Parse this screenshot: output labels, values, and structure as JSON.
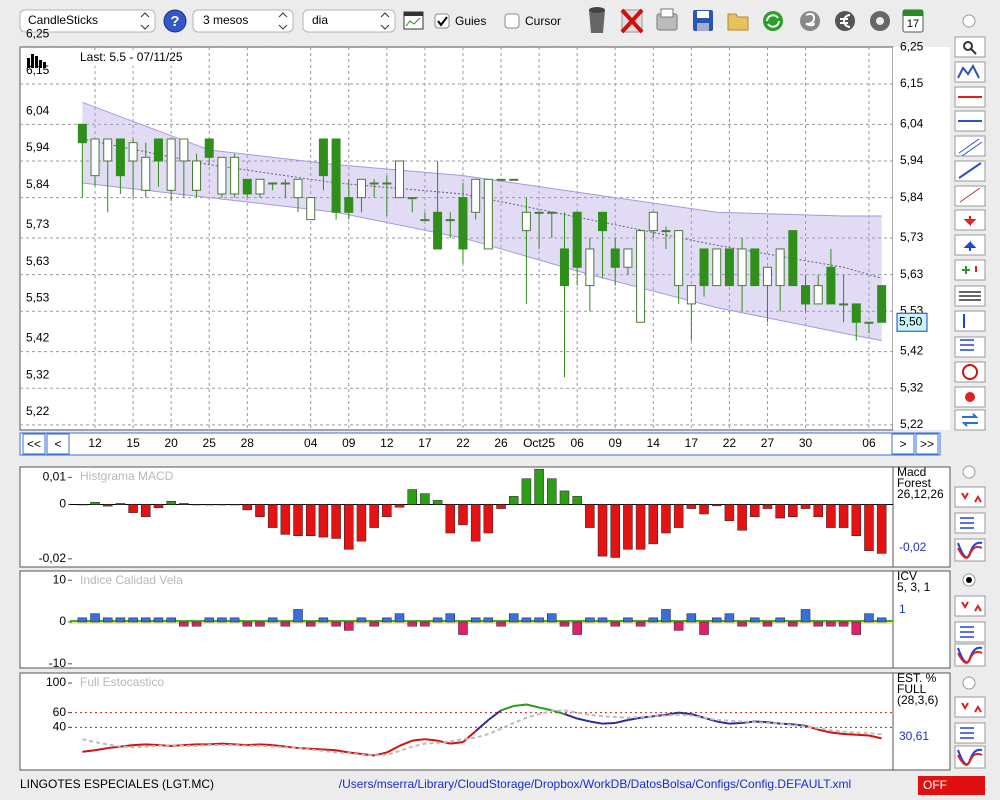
{
  "toolbar": {
    "chart_type": "CandleSticks",
    "help": "?",
    "period": "3 mesos",
    "interval": "dia",
    "guides": "Guies",
    "cursor": "Cursor",
    "calendar_day": "17"
  },
  "chart_data": [
    {
      "type": "candlestick",
      "annotation": "Last: 5.5 - 07/11/25",
      "categories": [
        null,
        "12",
        null,
        null,
        "15",
        null,
        null,
        "20",
        null,
        null,
        "25",
        null,
        null,
        "28",
        null,
        null,
        null,
        null,
        "04",
        null,
        null,
        "09",
        null,
        null,
        "12",
        null,
        null,
        "17",
        null,
        null,
        "22",
        null,
        null,
        "26",
        null,
        null,
        "Oct25",
        null,
        null,
        "06",
        null,
        null,
        "09",
        null,
        null,
        "14",
        null,
        null,
        "17",
        null,
        null,
        "22",
        null,
        null,
        "27",
        null,
        null,
        "30",
        null,
        null,
        null,
        null,
        "06",
        null
      ],
      "open": [
        6.04,
        5.9,
        5.94,
        6.0,
        5.94,
        5.86,
        6.0,
        5.86,
        5.94,
        5.86,
        6.0,
        5.85,
        5.85,
        5.89,
        5.85,
        5.88,
        5.88,
        5.84,
        5.78,
        6.0,
        6.0,
        5.84,
        5.84,
        5.88,
        5.88,
        5.84,
        5.84,
        5.78,
        5.8,
        5.78,
        5.84,
        5.8,
        5.7,
        5.89,
        5.89,
        5.75,
        5.8,
        5.8,
        5.7,
        5.8,
        5.6,
        5.8,
        5.7,
        5.65,
        5.5,
        5.75,
        5.75,
        5.6,
        5.55,
        5.7,
        5.6,
        5.7,
        5.6,
        5.7,
        5.6,
        5.6,
        5.75,
        5.6,
        5.55,
        5.65,
        5.55,
        5.55,
        5.5,
        5.6
      ],
      "high": [
        6.04,
        6.0,
        6.0,
        6.0,
        6.0,
        5.99,
        6.0,
        6.0,
        6.0,
        5.96,
        6.0,
        5.95,
        5.96,
        5.89,
        5.89,
        5.88,
        5.89,
        5.89,
        5.84,
        6.0,
        6.0,
        5.89,
        5.89,
        5.89,
        5.9,
        5.94,
        5.84,
        5.8,
        5.94,
        5.8,
        5.88,
        5.89,
        5.89,
        5.89,
        5.89,
        5.84,
        5.8,
        5.8,
        5.8,
        5.8,
        5.73,
        5.8,
        5.73,
        5.7,
        5.75,
        5.8,
        5.76,
        5.75,
        5.6,
        5.7,
        5.7,
        5.7,
        5.73,
        5.7,
        5.65,
        5.7,
        5.75,
        5.63,
        5.63,
        5.7,
        5.63,
        5.55,
        5.5,
        5.6
      ],
      "low": [
        5.84,
        5.87,
        5.8,
        5.85,
        5.84,
        5.84,
        5.87,
        5.83,
        5.84,
        5.84,
        5.93,
        5.84,
        5.84,
        5.84,
        5.84,
        5.86,
        5.84,
        5.8,
        5.78,
        5.86,
        5.78,
        5.78,
        5.8,
        5.84,
        5.79,
        5.84,
        5.8,
        5.78,
        5.7,
        5.73,
        5.66,
        5.78,
        5.7,
        5.89,
        5.89,
        5.55,
        5.7,
        5.73,
        5.35,
        5.6,
        5.53,
        5.62,
        5.6,
        5.63,
        5.5,
        5.73,
        5.7,
        5.55,
        5.45,
        5.57,
        5.6,
        5.6,
        5.53,
        5.6,
        5.5,
        5.53,
        5.6,
        5.53,
        5.55,
        5.55,
        5.5,
        5.45,
        5.47,
        5.5
      ],
      "close": [
        5.99,
        6.0,
        6.0,
        5.9,
        5.99,
        5.95,
        5.94,
        6.0,
        6.0,
        5.94,
        5.95,
        5.95,
        5.95,
        5.85,
        5.89,
        5.88,
        5.88,
        5.89,
        5.84,
        5.9,
        5.8,
        5.8,
        5.89,
        5.88,
        5.88,
        5.94,
        5.84,
        5.78,
        5.7,
        5.78,
        5.7,
        5.89,
        5.89,
        5.89,
        5.89,
        5.8,
        5.8,
        5.8,
        5.6,
        5.65,
        5.7,
        5.75,
        5.65,
        5.7,
        5.75,
        5.8,
        5.75,
        5.75,
        5.6,
        5.6,
        5.7,
        5.6,
        5.7,
        5.6,
        5.65,
        5.7,
        5.6,
        5.55,
        5.6,
        5.55,
        5.55,
        5.5,
        5.5,
        5.5
      ],
      "up_color": "#ffffff",
      "down_color": "#2f8f1a",
      "wick_color": "#2f8f1a",
      "bands": {
        "x": [
          0,
          10,
          20,
          30,
          40,
          50,
          60,
          63
        ],
        "upper": [
          6.1,
          5.97,
          5.93,
          5.9,
          5.85,
          5.8,
          5.79,
          5.79
        ],
        "mid": [
          6.0,
          5.93,
          5.88,
          5.85,
          5.78,
          5.71,
          5.65,
          5.62
        ],
        "lower": [
          5.88,
          5.84,
          5.8,
          5.73,
          5.63,
          5.54,
          5.47,
          5.45
        ],
        "color": "#a898e0"
      },
      "ylim": [
        5.206,
        6.251
      ],
      "yticks": [
        {
          "value": 5.22,
          "label": "5,22"
        },
        {
          "value": 5.32,
          "label": "5,32"
        },
        {
          "value": 5.42,
          "label": "5,42"
        },
        {
          "value": 5.53,
          "label": "5,53"
        },
        {
          "value": 5.63,
          "label": "5,63"
        },
        {
          "value": 5.73,
          "label": "5,73"
        },
        {
          "value": 5.84,
          "label": "5,84"
        },
        {
          "value": 5.94,
          "label": "5,94"
        },
        {
          "value": 6.04,
          "label": "6,04"
        },
        {
          "value": 6.15,
          "label": "6,15"
        },
        {
          "value": 6.25,
          "label": "6,25"
        }
      ],
      "price_label": {
        "value": 5.5,
        "label": "5,50"
      },
      "grid": true,
      "nav": [
        "<<",
        "<",
        ">",
        ">>"
      ]
    },
    {
      "type": "bar",
      "title": "Histgrama MACD",
      "params": [
        "Macd",
        "Forest",
        "26,12,26"
      ],
      "readout": "-0,02",
      "values": [
        0,
        0.0008,
        -0.0006,
        0.0004,
        -0.003,
        -0.0045,
        -0.0012,
        0.0012,
        0.0004,
        0,
        0,
        0,
        0,
        -0.002,
        -0.0045,
        -0.0085,
        -0.011,
        -0.0115,
        -0.0115,
        -0.012,
        -0.0125,
        -0.0165,
        -0.0135,
        -0.0085,
        -0.0045,
        -0.001,
        0.0055,
        0.004,
        0.0015,
        -0.0105,
        -0.0075,
        -0.0135,
        -0.0105,
        -0.0015,
        0.003,
        0.0095,
        0.013,
        0.0095,
        0.005,
        0.003,
        -0.0085,
        -0.019,
        -0.0195,
        -0.0165,
        -0.0165,
        -0.0145,
        -0.0105,
        -0.0085,
        -0.0015,
        -0.0035,
        -0.0005,
        -0.006,
        -0.0095,
        -0.0045,
        -0.0015,
        -0.005,
        -0.0045,
        -0.0015,
        -0.0045,
        -0.0085,
        -0.0085,
        -0.0115,
        -0.017,
        -0.018
      ],
      "positive_color": "#2e9e16",
      "negative_color": "#e41212",
      "ylim": [
        -0.023,
        0.0138
      ],
      "yticks": [
        {
          "value": 0.01,
          "label": "0,01"
        },
        0,
        {
          "value": -0.02,
          "label": "-0,02"
        }
      ]
    },
    {
      "type": "bar",
      "title": "Indice Calidad Vela",
      "params": [
        "ICV",
        "5, 3, 1"
      ],
      "readout": "1",
      "values": [
        1,
        2,
        1,
        1,
        1,
        1,
        1,
        1,
        -1,
        -1,
        1,
        1,
        1,
        -1,
        -1,
        1,
        -1,
        3,
        -1,
        1,
        -1,
        -2,
        1,
        -1,
        1,
        2,
        -1,
        -1,
        1,
        2,
        -3,
        1,
        1,
        -1,
        2,
        1,
        1,
        2,
        -1,
        -3,
        1,
        1,
        -1,
        1,
        -1,
        1,
        3,
        -2,
        2,
        -3,
        1,
        2,
        -1,
        1,
        -1,
        1,
        -1,
        3,
        -1,
        -1,
        -1,
        -3,
        2,
        1
      ],
      "positive_color": "#3a6fd8",
      "negative_color": "#e0206a",
      "baseline_color": "#3cb02c",
      "ylim": [
        -11,
        12.2
      ],
      "yticks": [
        10,
        0,
        -10
      ]
    },
    {
      "type": "line",
      "title": "Full Estocastico",
      "params": [
        "EST. %",
        "FULL",
        "(28,3,6)"
      ],
      "readout": "30,61",
      "series": [
        {
          "colors": {
            "high": "#2a9a1a",
            "mid": "#2c2c8c",
            "low": "#d41010"
          },
          "values": [
            7,
            9,
            12,
            14,
            16,
            17,
            16,
            15,
            16,
            17,
            17,
            18,
            17,
            16,
            17,
            16,
            14,
            12,
            11,
            10,
            9,
            6,
            4,
            2,
            6,
            15,
            22,
            24,
            22,
            18,
            20,
            35,
            50,
            63,
            69,
            71,
            67,
            63,
            58,
            52,
            48,
            45,
            46,
            50,
            53,
            55,
            57,
            60,
            58,
            53,
            48,
            45,
            46,
            48,
            47,
            45,
            44,
            42,
            37,
            33,
            31,
            30,
            29,
            25
          ]
        },
        {
          "color": "#bdbdbd",
          "dashed": true,
          "values": [
            24,
            20,
            17,
            14,
            13,
            14,
            15,
            16,
            15,
            15,
            16,
            16,
            16,
            15,
            15,
            14,
            13,
            12,
            10,
            8,
            6,
            5,
            3,
            2,
            3,
            8,
            14,
            18,
            19,
            21,
            24,
            26,
            31,
            38,
            46,
            53,
            58,
            62,
            63,
            60,
            57,
            55,
            54,
            53,
            54,
            55,
            56,
            57,
            56,
            53,
            50,
            49,
            48,
            47,
            46,
            45,
            43,
            41,
            39,
            36,
            34,
            33,
            32,
            30.61
          ]
        }
      ],
      "level_color": "#c02020",
      "ylim": [
        -17.7,
        113.6
      ],
      "yticks": [
        100,
        60,
        40
      ]
    }
  ],
  "footer": {
    "instrument": "LINGOTES ESPECIALES (LGT.MC)",
    "config_path": "/Users/mserra/Library/CloudStorage/Dropbox/WorkDB/DatosBolsa/Configs/Config.DEFAULT.xml",
    "status": "OFF"
  }
}
